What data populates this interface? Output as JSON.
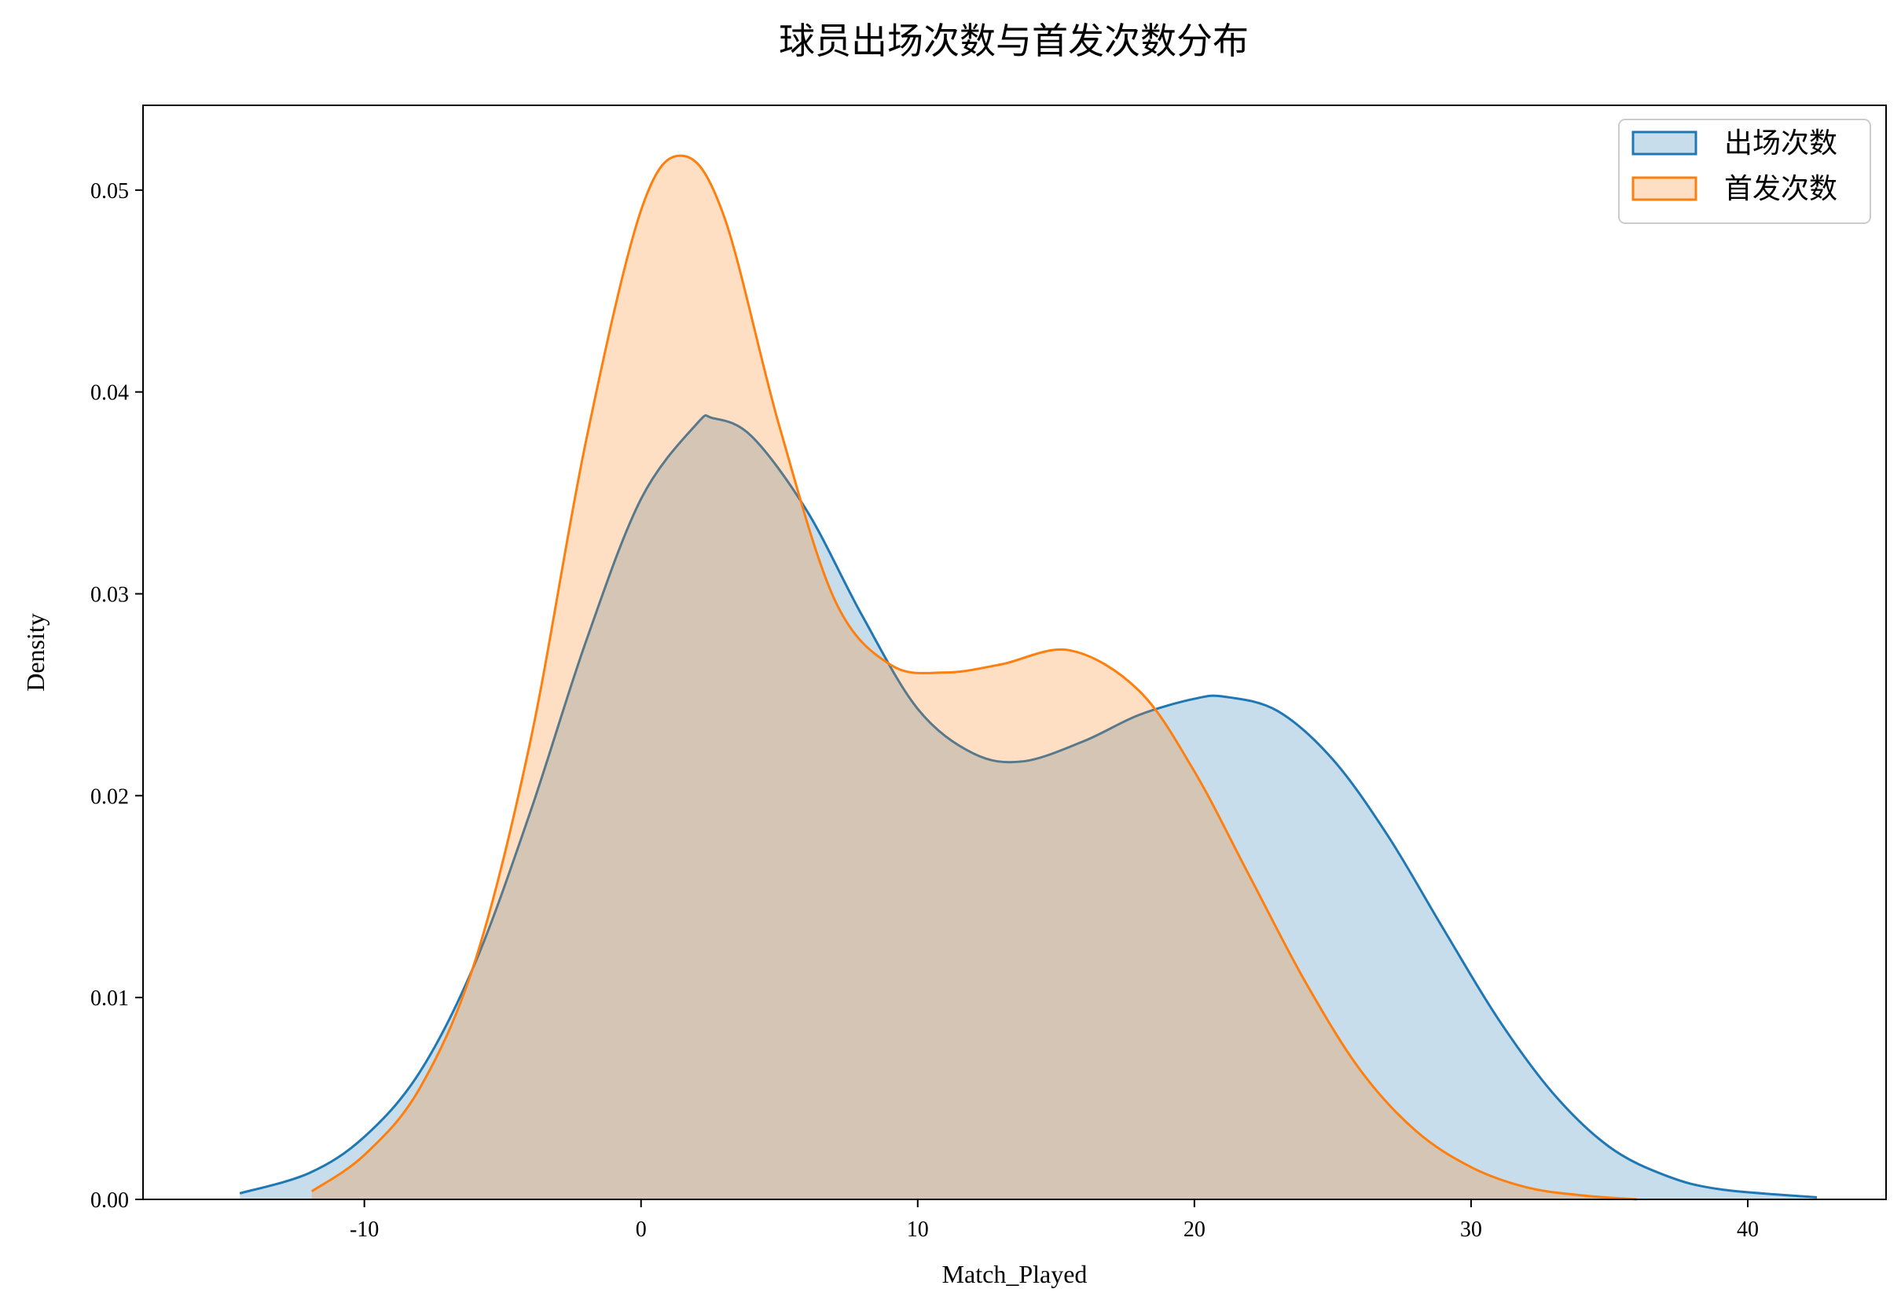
{
  "chart_data": {
    "type": "area",
    "title": "球员出场次数与首发次数分布",
    "xlabel": "Match_Played",
    "ylabel": "Density",
    "xlim": [
      -18,
      45
    ],
    "ylim": [
      0,
      0.0542
    ],
    "xticks": [
      -10,
      0,
      10,
      20,
      30,
      40
    ],
    "xtick_labels": [
      "-10",
      "0",
      "10",
      "20",
      "30",
      "40"
    ],
    "yticks": [
      0,
      0.01,
      0.02,
      0.03,
      0.04,
      0.05
    ],
    "ytick_labels": [
      "0.00",
      "0.01",
      "0.02",
      "0.03",
      "0.04",
      "0.05"
    ],
    "grid": false,
    "legend_position": "top-right",
    "series": [
      {
        "name": "出场次数",
        "color": "#1f77b4",
        "fill_opacity": 0.25,
        "x": [
          -14.5,
          -12,
          -10,
          -8,
          -6,
          -4,
          -2,
          0,
          2,
          2.6,
          4,
          6,
          8,
          10,
          12,
          13.8,
          16,
          18,
          20,
          21.1,
          23,
          25,
          27,
          29,
          31,
          33,
          35,
          37,
          39,
          42.5
        ],
        "y": [
          0.0003,
          0.0013,
          0.0031,
          0.0063,
          0.0117,
          0.0192,
          0.0276,
          0.0347,
          0.0384,
          0.0387,
          0.0378,
          0.0341,
          0.0289,
          0.0243,
          0.0221,
          0.0217,
          0.0227,
          0.024,
          0.0248,
          0.0249,
          0.0242,
          0.0218,
          0.018,
          0.0134,
          0.0089,
          0.0052,
          0.0026,
          0.0012,
          0.0005,
          0.0001
        ]
      },
      {
        "name": "首发次数",
        "color": "#ff7f0e",
        "fill_opacity": 0.25,
        "x": [
          -11.9,
          -10,
          -8,
          -6,
          -4,
          -2,
          0,
          1.5,
          3,
          5,
          7,
          9,
          11,
          13,
          15.5,
          18,
          20,
          22,
          24,
          26,
          28,
          30,
          32,
          34,
          36
        ],
        "y": [
          0.0004,
          0.0022,
          0.0055,
          0.0118,
          0.0227,
          0.0375,
          0.049,
          0.0517,
          0.0487,
          0.0383,
          0.0297,
          0.0265,
          0.0261,
          0.0265,
          0.0272,
          0.0252,
          0.0212,
          0.016,
          0.0108,
          0.0064,
          0.0034,
          0.0016,
          0.0006,
          0.0002,
          0.0
        ]
      }
    ]
  }
}
